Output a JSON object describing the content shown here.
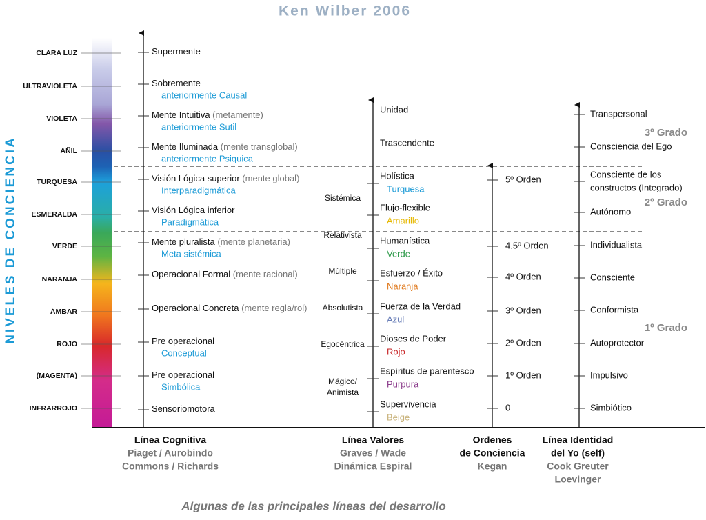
{
  "title": "Ken Wilber 2006",
  "vertical_label": "NIVELES DE CONCIENCIA",
  "levels": [
    "CLARA LUZ",
    "ULTRAVIOLETA",
    "VIOLETA",
    "AÑIL",
    "TURQUESA",
    "ESMERALDA",
    "VERDE",
    "NARANJA",
    "ÁMBAR",
    "ROJO",
    "(MAGENTA)",
    "INFRARROJO"
  ],
  "cognitive": [
    {
      "text": "Supermente"
    },
    {
      "text": "Sobremente",
      "sub": "anteriormente Causal"
    },
    {
      "text": "Mente Intuitiva",
      "note": "(metamente)",
      "sub": "anteriormente Sutil"
    },
    {
      "text": "Mente Iluminada",
      "note": "(mente transglobal)",
      "sub": "anteriormente Psiquica"
    },
    {
      "text": "Visión Lógica superior",
      "note": "(mente global)",
      "sub": "Interparadigmática"
    },
    {
      "text": "Visión Lógica inferior",
      "sub": "Paradigmática"
    },
    {
      "text": "Mente pluralista",
      "note": "(mente planetaria)",
      "sub": "Meta sistémica"
    },
    {
      "text": "Operacional Formal",
      "note": "(mente racional)"
    },
    {
      "text": "Operacional Concreta",
      "note": "(mente regla/rol)"
    },
    {
      "text": "Pre operacional",
      "sub": "Conceptual"
    },
    {
      "text": "Pre operacional",
      "sub": "Simbólica"
    },
    {
      "text": "Sensoriomotora"
    }
  ],
  "values_line": [
    {
      "text": "Unidad"
    },
    {
      "text": "Trascendente"
    },
    {
      "text": "Holística",
      "sub": "Turquesa",
      "color": "#1b9ad6"
    },
    {
      "text": "Flujo-flexible",
      "sub": "Amarillo",
      "color": "#e6b800"
    },
    {
      "text": "Humanística",
      "sub": "Verde",
      "color": "#2e9a4a"
    },
    {
      "text": "Esfuerzo / Éxito",
      "sub": "Naranja",
      "color": "#e07a1e"
    },
    {
      "text": "Fuerza de la Verdad",
      "sub": "Azul",
      "color": "#6a7fb8"
    },
    {
      "text": "Dioses de Poder",
      "sub": "Rojo",
      "color": "#c8282a"
    },
    {
      "text": "Espíritus de parentesco",
      "sub": "Purpura",
      "color": "#8a3a8a"
    },
    {
      "text": "Supervivencia",
      "sub": "Beige",
      "color": "#c8b27a"
    }
  ],
  "value_groups": [
    "Sistémica",
    "Relativista",
    "Múltiple",
    "Absolutista",
    "Egocéntrica",
    [
      "Mágico/",
      "Animista"
    ]
  ],
  "orders": [
    "5º Orden",
    "4.5º Orden",
    "4º Orden",
    "3º Orden",
    "2º Orden",
    "1º Orden",
    "0"
  ],
  "identity": [
    [
      "Transpersonal"
    ],
    [
      "Consciencia del Ego"
    ],
    [
      "Consciente de los",
      "constructos (Integrado)"
    ],
    [
      "Autónomo"
    ],
    [
      "Individualista"
    ],
    [
      "Consciente"
    ],
    [
      "Conformista"
    ],
    [
      "Autoprotector"
    ],
    [
      "Impulsivo"
    ],
    [
      "Simbiótico"
    ]
  ],
  "grados": [
    "3º Grado",
    "2º Grado",
    "1º Grado"
  ],
  "footers": [
    [
      "Línea Cognitiva",
      "Piaget / Aurobindo",
      "Commons / Richards"
    ],
    [
      "Línea Valores",
      "Graves / Wade",
      "Dinámica Espiral"
    ],
    [
      "Ordenes",
      "de Conciencia",
      "Kegan"
    ],
    [
      "Línea Identidad",
      "del Yo (self)",
      "Cook Greuter",
      "Loevinger"
    ]
  ],
  "caption": "Algunas de las principales líneas del desarrollo"
}
